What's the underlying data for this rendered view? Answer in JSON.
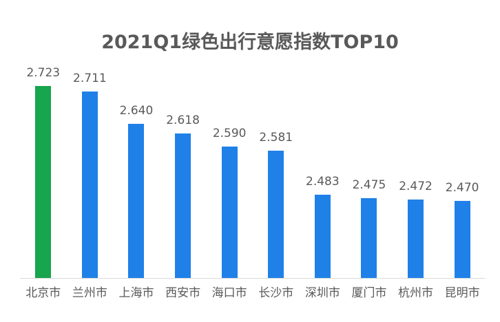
{
  "chart_data": {
    "type": "bar",
    "title": "2021Q1绿色出行意愿指数TOP10",
    "categories": [
      "北京市",
      "兰州市",
      "上海市",
      "西安市",
      "海口市",
      "长沙市",
      "深圳市",
      "厦门市",
      "杭州市",
      "昆明市"
    ],
    "values": [
      2.723,
      2.711,
      2.64,
      2.618,
      2.59,
      2.581,
      2.483,
      2.475,
      2.472,
      2.47
    ],
    "value_labels": [
      "2.723",
      "2.711",
      "2.640",
      "2.618",
      "2.590",
      "2.581",
      "2.483",
      "2.475",
      "2.472",
      "2.470"
    ],
    "ylim": [
      2.3,
      2.8
    ],
    "grid": false,
    "legend": null,
    "highlight_index": 0,
    "colors": {
      "highlight_bar": "#17A54E",
      "default_bar": "#1F80E8",
      "label_text": "#595959",
      "title_text": "#595959",
      "axis_line": "#D9D9D9",
      "background": "#FFFFFF"
    }
  }
}
